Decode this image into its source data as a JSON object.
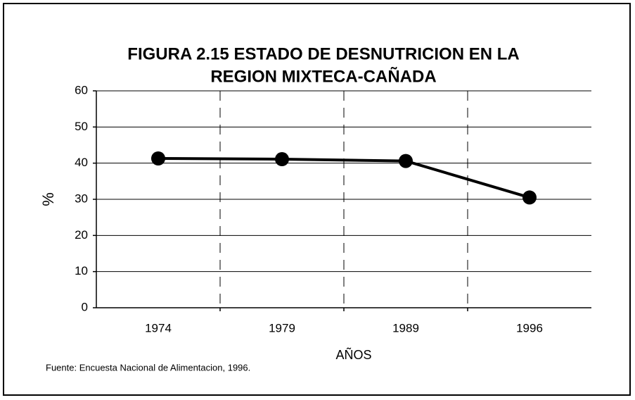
{
  "chart_data": {
    "type": "line",
    "title": [
      "FIGURA 2.15 ESTADO DE DESNUTRICION EN LA",
      "REGION MIXTECA-CAÑADA"
    ],
    "ylabel": "%",
    "xlabel": "AÑOS",
    "source": "Fuente: Encuesta Nacional de Alimentacion, 1996.",
    "categories": [
      "1974",
      "1979",
      "1989",
      "1996"
    ],
    "values": [
      41.3,
      41.1,
      40.6,
      30.5
    ],
    "color": "#000000",
    "ylim": [
      0,
      60
    ],
    "yticks": [
      0,
      10,
      20,
      30,
      40,
      50,
      60
    ],
    "grid": true
  }
}
